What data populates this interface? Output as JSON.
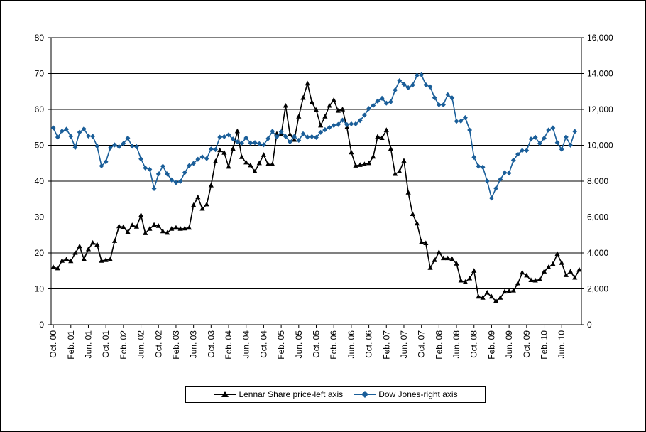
{
  "chart_data": {
    "type": "line",
    "title": "",
    "xlabel": "",
    "ylabel": "",
    "y_left_lim": [
      0,
      80
    ],
    "y_right_lim": [
      0,
      16000
    ],
    "y_left_ticks": [
      "0",
      "10",
      "20",
      "30",
      "40",
      "50",
      "60",
      "70",
      "80"
    ],
    "y_right_ticks": [
      "0",
      "2,000",
      "4,000",
      "6,000",
      "8,000",
      "10,000",
      "12,000",
      "14,000",
      "16,000"
    ],
    "grid": "horizontal",
    "legend_position": "bottom",
    "x_tick_labels": [
      "Oct. 00",
      "Feb. 01",
      "Jun. 01",
      "Oct. 01",
      "Feb. 02",
      "Jun. 02",
      "Oct. 02",
      "Feb. 03",
      "Jun. 03",
      "Oct. 03",
      "Feb. 04",
      "Jun. 04",
      "Oct. 04",
      "Feb. 05",
      "Jun. 05",
      "Oct. 05",
      "Feb. 06",
      "Jun. 06",
      "Oct. 06",
      "Feb. 07",
      "Jun. 07",
      "Oct. 07",
      "Feb. 08",
      "Jun. 08",
      "Oct. 08",
      "Feb. 09",
      "Jun. 09",
      "Oct. 09",
      "Feb. 10",
      "Jun. 10"
    ],
    "series": [
      {
        "name": "Lennar Share price-left axis",
        "axis": "left",
        "color": "#000000",
        "marker": "triangle",
        "values": [
          16,
          15.7,
          17.8,
          18.2,
          17.7,
          20,
          21.8,
          18.3,
          21,
          22.8,
          22.3,
          17.8,
          18,
          18.2,
          23.3,
          27.4,
          27.2,
          25.8,
          27.7,
          27.3,
          30.5,
          25.5,
          26.7,
          27.8,
          27.5,
          26,
          25.6,
          26.7,
          27,
          26.7,
          26.8,
          27,
          33.3,
          35.5,
          32.3,
          33.5,
          38.8,
          45.5,
          48.6,
          47.9,
          44,
          49,
          53.9,
          46.7,
          45.2,
          44.4,
          42.7,
          45,
          47.3,
          44.7,
          44.7,
          53.2,
          53,
          61,
          53,
          51.5,
          58,
          63.2,
          67.2,
          62,
          59.8,
          55.5,
          58,
          61,
          62.6,
          59.6,
          60,
          55,
          48,
          44.3,
          44.5,
          44.7,
          45,
          46.8,
          52.4,
          52,
          54.2,
          49,
          42,
          42.7,
          45.7,
          36.8,
          30.8,
          28.2,
          23,
          22.7,
          15.8,
          18,
          20.2,
          18.5,
          18.5,
          18.3,
          17,
          12.3,
          11.9,
          12.9,
          15,
          7.8,
          7.5,
          8.9,
          7.8,
          6.6,
          7.5,
          9.2,
          9.3,
          9.5,
          11.5,
          14.5,
          13.7,
          12.4,
          12.3,
          12.6,
          14.8,
          16,
          16.9,
          19.7,
          17.2,
          13.8,
          14.8,
          13.1,
          15.3
        ],
        "labels": []
      },
      {
        "name": "Dow Jones-right axis",
        "axis": "right",
        "color": "#1a5e99",
        "marker": "diamond",
        "values": [
          10970,
          10450,
          10790,
          10890,
          10500,
          9880,
          10730,
          10910,
          10520,
          10500,
          9950,
          8850,
          9080,
          9850,
          10020,
          9920,
          10100,
          10400,
          9950,
          9920,
          9240,
          8740,
          8660,
          7590,
          8400,
          8830,
          8400,
          8070,
          7920,
          7990,
          8480,
          8860,
          8990,
          9220,
          9350,
          9260,
          9790,
          9760,
          10450,
          10480,
          10580,
          10350,
          10190,
          10130,
          10410,
          10130,
          10150,
          10090,
          10030,
          10370,
          10780,
          10470,
          10750,
          10490,
          10190,
          10500,
          10280,
          10640,
          10460,
          10480,
          10440,
          10720,
          10870,
          10990,
          11110,
          11160,
          11400,
          11150,
          11190,
          11190,
          11380,
          11680,
          12050,
          12220,
          12460,
          12620,
          12350,
          12420,
          13080,
          13600,
          13400,
          13210,
          13360,
          13900,
          13930,
          13370,
          13260,
          12650,
          12260,
          12260,
          12820,
          12640,
          11340,
          11350,
          11540,
          10850,
          9330,
          8830,
          8780,
          8000,
          7060,
          7600,
          8100,
          8470,
          8450,
          9170,
          9500,
          9710,
          9710,
          10350,
          10440,
          10100,
          10390,
          10850,
          10970,
          10150,
          9770,
          10460,
          10010,
          10770
        ],
        "labels": []
      }
    ]
  }
}
